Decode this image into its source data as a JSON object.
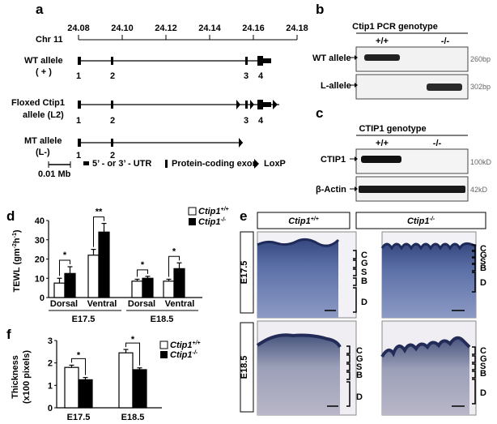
{
  "panels": {
    "a": "a",
    "b": "b",
    "c": "c",
    "d": "d",
    "e": "e",
    "f": "f"
  },
  "panel_a": {
    "chr": "Chr 11",
    "ticks": [
      "24.08",
      "24.10",
      "24.12",
      "24.14",
      "24.16",
      "24.18"
    ],
    "alleles": [
      {
        "line1": "WT allele",
        "line2": "( + )",
        "exons": [
          "1",
          "2",
          "3",
          "4"
        ]
      },
      {
        "line1": "Floxed Ctip1",
        "line2": "allele    (L2)",
        "exons": [
          "1",
          "2",
          "3",
          "4"
        ]
      },
      {
        "line1": "MT allele",
        "line2": "(L-)",
        "exons": [
          "1",
          "2"
        ]
      }
    ],
    "scalebar": "0.01 Mb",
    "legend": [
      "5’ - or 3’ - UTR",
      "Protein-coding exon",
      "LoxP"
    ]
  },
  "panel_b": {
    "title": "Ctip1 PCR genotype",
    "lanes": [
      "+/+",
      "-/-"
    ],
    "rows": [
      {
        "label": "WT allele",
        "size": "260bp"
      },
      {
        "label": "L-allele",
        "size": "302bp"
      }
    ]
  },
  "panel_c": {
    "title": "CTIP1 genotype",
    "lanes": [
      "+/+",
      "-/-"
    ],
    "rows": [
      {
        "label": "CTIP1",
        "size": "100kD"
      },
      {
        "label": "β-Actin",
        "size": "42kD"
      }
    ]
  },
  "panel_d": {
    "legend_wt": "Ctip1",
    "legend_wt_sup": "+/+",
    "legend_ko": "Ctip1",
    "legend_ko_sup": "-/-",
    "ylabel": "TEWL (gm",
    "ylabel_sup1": "-2",
    "ylabel_mid": "h",
    "ylabel_sup2": "-1",
    "ylabel_end": ")",
    "group_labels": [
      "Dorsal",
      "Ventral",
      "Dorsal",
      "Ventral"
    ],
    "stage_labels": [
      "E17.5",
      "E18.5"
    ],
    "significance": [
      "*",
      "**",
      "*",
      "*"
    ]
  },
  "panel_e": {
    "col_headers": [
      {
        "name": "Ctip1",
        "sup": "+/+"
      },
      {
        "name": "Ctip1",
        "sup": "-/-"
      }
    ],
    "row_labels": [
      "E17.5",
      "E18.5"
    ],
    "layer_labels": [
      "C",
      "G",
      "S",
      "B",
      "D"
    ]
  },
  "panel_f": {
    "ylabel1": "Thickness",
    "ylabel2": "(x100 pixels)",
    "legend_wt": "Ctip1",
    "legend_wt_sup": "+/+",
    "legend_ko": "Ctip1",
    "legend_ko_sup": "-/-",
    "significance": [
      "*",
      "*"
    ]
  },
  "chart_data": [
    {
      "type": "bar",
      "categories": [
        "Dorsal E17.5",
        "Ventral E17.5",
        "Dorsal E18.5",
        "Ventral E18.5"
      ],
      "series": [
        {
          "name": "Ctip1 +/+",
          "values": [
            7.5,
            22,
            8.5,
            8.5
          ],
          "errors": [
            2.5,
            3,
            1,
            1
          ]
        },
        {
          "name": "Ctip1 -/-",
          "values": [
            12.5,
            34,
            10,
            15
          ],
          "errors": [
            3.5,
            4.5,
            1,
            3
          ]
        }
      ],
      "ylim": [
        0,
        40
      ],
      "yticks": [
        "0",
        "10",
        "20",
        "30",
        "40"
      ],
      "ylabel": "TEWL (gm-2h-1)"
    },
    {
      "type": "bar",
      "categories": [
        "E17.5",
        "E18.5"
      ],
      "series": [
        {
          "name": "Ctip1 +/+",
          "values": [
            1.8,
            2.45
          ],
          "errors": [
            0.1,
            0.15
          ]
        },
        {
          "name": "Ctip1 -/-",
          "values": [
            1.25,
            1.7
          ],
          "errors": [
            0.1,
            0.08
          ]
        }
      ],
      "ylim": [
        0,
        3
      ],
      "yticks": [
        "0",
        "1",
        "2",
        "3"
      ],
      "ylabel": "Thickness (x100 pixels)"
    }
  ]
}
